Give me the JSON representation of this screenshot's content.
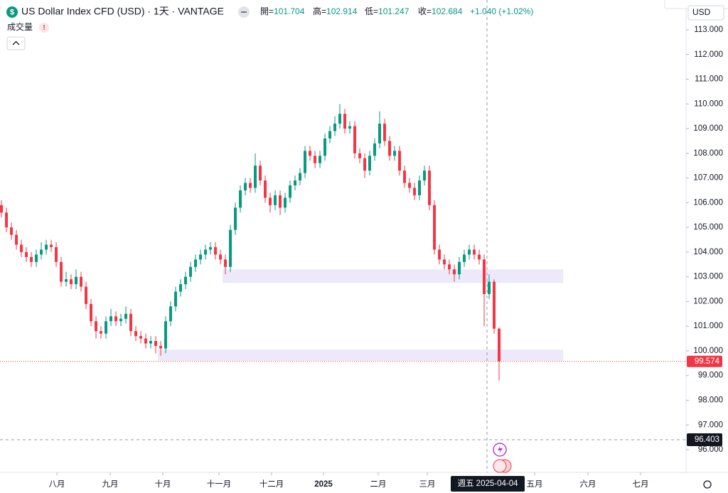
{
  "chart_data": {
    "type": "candlestick",
    "title": "US Dollar Index CFD (USD) · 1天 · VANTAGE",
    "volume_label": "成交量",
    "ohlc_header": [
      {
        "label": "開=",
        "value": 101.704
      },
      {
        "label": "高=",
        "value": 102.914
      },
      {
        "label": "低=",
        "value": 101.247
      },
      {
        "label": "收=",
        "value": 102.684
      }
    ],
    "change": "+1.040 (+1.02%)",
    "currency": "USD",
    "up_color": "#089981",
    "down_color": "#f23645",
    "series": [
      {
        "name": "US Dollar Index CFD",
        "open": [
          105.9,
          105.6,
          105.0,
          104.7,
          104.3,
          104.0,
          103.8,
          103.6,
          103.9,
          104.1,
          104.3,
          104.2,
          103.6,
          102.8,
          102.9,
          102.7,
          103.0,
          102.6,
          101.9,
          101.2,
          100.8,
          100.7,
          101.2,
          101.4,
          101.2,
          101.3,
          101.5,
          100.8,
          100.6,
          100.5,
          100.3,
          100.4,
          100.2,
          100.1,
          101.2,
          101.8,
          102.4,
          102.7,
          103.0,
          103.4,
          103.7,
          103.9,
          104.1,
          104.2,
          103.9,
          103.7,
          103.4,
          104.9,
          105.8,
          106.5,
          106.8,
          106.6,
          107.5,
          106.9,
          106.2,
          105.9,
          106.3,
          105.8,
          106.2,
          106.7,
          106.9,
          107.2,
          108.1,
          107.9,
          107.6,
          107.9,
          108.6,
          108.9,
          109.2,
          109.6,
          109.0,
          109.1,
          108.0,
          107.8,
          107.3,
          107.9,
          108.4,
          109.2,
          108.5,
          107.9,
          108.1,
          107.3,
          106.8,
          106.6,
          106.3,
          106.9,
          107.3,
          105.9,
          104.1,
          103.7,
          103.5,
          103.3,
          103.1,
          103.6,
          103.9,
          104.1,
          103.9,
          103.7,
          102.3,
          102.8,
          100.9
        ],
        "high": [
          106.1,
          105.8,
          105.2,
          104.9,
          104.5,
          104.2,
          104.0,
          104.1,
          104.4,
          104.5,
          104.5,
          104.4,
          103.8,
          103.2,
          103.1,
          103.3,
          103.2,
          102.8,
          102.1,
          101.4,
          101.0,
          101.4,
          101.7,
          101.6,
          101.5,
          101.8,
          101.7,
          101.0,
          100.8,
          100.7,
          100.6,
          100.6,
          100.4,
          101.4,
          102.0,
          102.6,
          102.9,
          103.2,
          103.6,
          103.9,
          104.1,
          104.3,
          104.4,
          104.4,
          104.1,
          103.9,
          105.1,
          106.0,
          106.7,
          107.0,
          107.0,
          108.0,
          107.7,
          107.1,
          106.4,
          106.5,
          106.5,
          106.4,
          106.9,
          107.1,
          107.4,
          108.3,
          108.3,
          108.1,
          108.1,
          108.8,
          109.1,
          109.5,
          110.0,
          109.8,
          109.3,
          109.3,
          108.2,
          108.0,
          108.1,
          108.6,
          109.7,
          109.4,
          108.7,
          108.3,
          108.3,
          107.5,
          107.0,
          106.8,
          107.1,
          107.5,
          107.5,
          106.1,
          104.3,
          103.9,
          103.7,
          103.5,
          103.8,
          104.1,
          104.3,
          104.3,
          104.1,
          103.9,
          103.1,
          102.9,
          100.95
        ],
        "low": [
          105.4,
          104.8,
          104.5,
          104.1,
          103.8,
          103.6,
          103.4,
          103.4,
          103.7,
          103.9,
          104.0,
          103.4,
          102.6,
          102.6,
          102.5,
          102.5,
          102.4,
          101.7,
          101.0,
          100.5,
          100.5,
          100.5,
          101.0,
          101.0,
          101.0,
          101.1,
          100.6,
          100.4,
          100.3,
          100.1,
          100.1,
          99.9,
          99.8,
          99.9,
          101.0,
          101.6,
          102.2,
          102.5,
          102.8,
          103.2,
          103.5,
          103.7,
          103.9,
          103.7,
          103.5,
          103.1,
          103.2,
          104.7,
          105.6,
          106.3,
          106.4,
          106.4,
          106.7,
          106.0,
          105.6,
          105.7,
          105.5,
          105.6,
          106.0,
          106.5,
          106.7,
          107.0,
          107.7,
          107.4,
          107.4,
          107.7,
          108.4,
          108.7,
          109.0,
          108.8,
          108.8,
          107.8,
          107.6,
          107.0,
          107.1,
          107.7,
          108.2,
          108.3,
          107.7,
          107.7,
          107.1,
          106.6,
          106.4,
          106.1,
          106.1,
          106.7,
          105.7,
          103.9,
          103.5,
          103.3,
          103.1,
          102.8,
          102.9,
          103.4,
          103.7,
          103.7,
          103.5,
          101.0,
          102.1,
          100.7,
          98.8
        ],
        "close": [
          105.6,
          105.0,
          104.7,
          104.3,
          104.0,
          103.8,
          103.6,
          103.9,
          104.1,
          104.3,
          104.2,
          103.6,
          102.8,
          102.9,
          102.7,
          103.0,
          102.6,
          101.9,
          101.2,
          100.8,
          100.7,
          101.2,
          101.4,
          101.2,
          101.3,
          101.5,
          100.8,
          100.6,
          100.5,
          100.3,
          100.4,
          100.2,
          100.1,
          101.2,
          101.8,
          102.4,
          102.7,
          103.0,
          103.4,
          103.7,
          103.9,
          104.1,
          104.2,
          103.9,
          103.7,
          103.4,
          104.9,
          105.8,
          106.5,
          106.8,
          106.6,
          107.5,
          106.9,
          106.2,
          105.9,
          106.3,
          105.8,
          106.2,
          106.7,
          106.9,
          107.2,
          108.1,
          107.9,
          107.6,
          107.9,
          108.6,
          108.9,
          109.2,
          109.6,
          109.0,
          109.1,
          108.0,
          107.8,
          107.3,
          107.9,
          108.4,
          109.2,
          108.5,
          107.9,
          108.1,
          107.3,
          106.8,
          106.6,
          106.3,
          106.9,
          107.3,
          105.9,
          104.1,
          103.7,
          103.5,
          103.3,
          103.1,
          103.6,
          103.9,
          104.1,
          103.9,
          103.7,
          102.3,
          102.8,
          100.9,
          99.574
        ]
      }
    ],
    "xlim": [
      -0.29,
      137.57
    ],
    "xticks": [
      {
        "value": 11.14,
        "label": "八月"
      },
      {
        "value": 21.86,
        "label": "九月"
      },
      {
        "value": 32.43,
        "label": "十月"
      },
      {
        "value": 43.71,
        "label": "十一月"
      },
      {
        "value": 54.29,
        "label": "十二月"
      },
      {
        "value": 64.71,
        "label": "2025"
      },
      {
        "value": 75.71,
        "label": "二月"
      },
      {
        "value": 85.57,
        "label": "三月"
      },
      {
        "value": 107.14,
        "label": "五月"
      },
      {
        "value": 117.86,
        "label": "六月"
      },
      {
        "value": 128.43,
        "label": "七月"
      }
    ],
    "ylim": [
      95.223,
      113.345
    ],
    "yticks": [
      {
        "value": 96,
        "label": "96.000"
      },
      {
        "value": 97,
        "label": "97.000"
      },
      {
        "value": 98,
        "label": "98.000"
      },
      {
        "value": 99,
        "label": "99.000"
      },
      {
        "value": 100,
        "label": "100.000"
      },
      {
        "value": 101,
        "label": "101.000"
      },
      {
        "value": 102,
        "label": "102.000"
      },
      {
        "value": 103,
        "label": "103.000"
      },
      {
        "value": 104,
        "label": "104.000"
      },
      {
        "value": 105,
        "label": "105.000"
      },
      {
        "value": 106,
        "label": "106.000"
      },
      {
        "value": 107,
        "label": "107.000"
      },
      {
        "value": 108,
        "label": "108.000"
      },
      {
        "value": 109,
        "label": "109.000"
      },
      {
        "value": 110,
        "label": "110.000"
      },
      {
        "value": 111,
        "label": "111.000"
      },
      {
        "value": 112,
        "label": "112.000"
      },
      {
        "value": 113,
        "label": "113.000"
      }
    ],
    "zones": [
      {
        "top": 103.3,
        "bottom": 102.75,
        "from": 44.43,
        "to": 112.86
      },
      {
        "top": 100.05,
        "bottom": 99.6,
        "from": 31.43,
        "to": 112.86
      }
    ],
    "last_price": 99.574,
    "crosshair": {
      "x": 97.57,
      "y": 96.403,
      "x_label": "週五 2025-04-04"
    }
  }
}
